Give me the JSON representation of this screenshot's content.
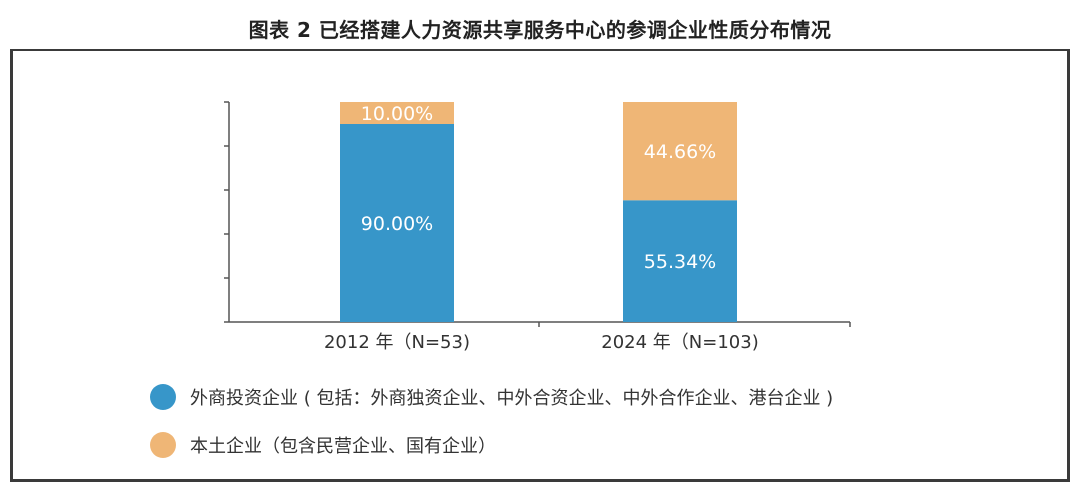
{
  "title": "图表 2 已经搭建人力资源共享服务中心的参调企业性质分布情况",
  "chart_data": {
    "type": "bar",
    "stacked": true,
    "percent": true,
    "categories": [
      "2012 年（N=53)",
      "2024 年（N=103)"
    ],
    "series": [
      {
        "name": "外商投资企业 ( 包括：外商独资企业、中外合资企业、中外合作企业、港台企业 )",
        "color": "#3796c9",
        "values": [
          90.0,
          55.34
        ],
        "labels": [
          "90.00%",
          "55.34%"
        ]
      },
      {
        "name": "本土企业（包含民营企业、国有企业）",
        "color": "#efb676",
        "values": [
          10.0,
          44.66
        ],
        "labels": [
          "10.00%",
          "44.66%"
        ]
      }
    ],
    "ylim": [
      0,
      100
    ],
    "xlabel": "",
    "ylabel": "",
    "grid": false,
    "legend": "bottom-left"
  }
}
